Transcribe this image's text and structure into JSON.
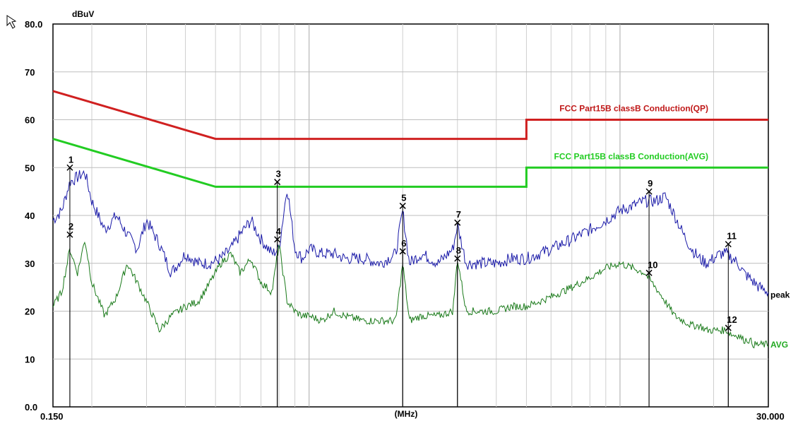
{
  "chart_data": {
    "type": "line",
    "title": "",
    "xlabel": "(MHz)",
    "ylabel": "dBuV",
    "x_scale": "log",
    "xlim": [
      0.15,
      30
    ],
    "ylim": [
      0,
      80
    ],
    "x_tick_labels": [
      "0.150",
      "30.000"
    ],
    "y_ticks": [
      0,
      10,
      20,
      30,
      40,
      50,
      60,
      70,
      80
    ],
    "y_tick_labels": [
      "0.0",
      "10",
      "20",
      "30",
      "40",
      "50",
      "60",
      "70",
      "80.0"
    ],
    "grid": true,
    "limit_lines": [
      {
        "name": "FCC  Part15B classB Conduction(QP)",
        "color": "#d02020",
        "points": [
          [
            0.15,
            66
          ],
          [
            0.5,
            56
          ],
          [
            5,
            56
          ],
          [
            5,
            60
          ],
          [
            30,
            60
          ]
        ]
      },
      {
        "name": "FCC  Part15B classB Conduction(AVG)",
        "color": "#22cc22",
        "points": [
          [
            0.15,
            56
          ],
          [
            0.5,
            46
          ],
          [
            5,
            46
          ],
          [
            5,
            50
          ],
          [
            30,
            50
          ]
        ]
      }
    ],
    "series": [
      {
        "name": "peak",
        "color": "#1a1aa8",
        "x": [
          0.15,
          0.16,
          0.17,
          0.18,
          0.19,
          0.2,
          0.22,
          0.24,
          0.26,
          0.28,
          0.3,
          0.33,
          0.36,
          0.4,
          0.44,
          0.48,
          0.52,
          0.56,
          0.6,
          0.65,
          0.7,
          0.76,
          0.8,
          0.85,
          0.9,
          0.95,
          1.0,
          1.1,
          1.2,
          1.3,
          1.5,
          1.7,
          1.9,
          2.0,
          2.1,
          2.3,
          2.6,
          2.9,
          3.0,
          3.2,
          3.5,
          4.0,
          4.5,
          5.0,
          5.5,
          6.0,
          7.0,
          8.0,
          9.0,
          10.0,
          11.0,
          12.0,
          13.0,
          14.0,
          15.0,
          16.0,
          17.0,
          18.0,
          19.0,
          20.0,
          21.0,
          22.0,
          23.0,
          24.0,
          25.0,
          26.0,
          27.0,
          28.0,
          30.0
        ],
        "values": [
          39,
          41,
          47,
          48,
          49,
          43,
          37,
          40,
          36,
          33,
          39,
          34,
          28,
          32,
          30,
          30,
          31,
          33,
          36,
          39,
          35,
          32,
          33,
          46,
          33,
          31,
          33,
          32,
          32,
          31,
          31,
          30,
          32,
          41,
          30,
          32,
          30,
          33,
          38,
          30,
          30,
          30,
          31,
          31,
          32,
          33,
          35,
          37,
          39,
          41,
          42,
          43,
          43,
          44,
          40,
          36,
          33,
          31,
          30,
          31,
          32,
          32,
          31,
          30,
          28,
          27,
          26,
          25,
          24
        ]
      },
      {
        "name": "AVG",
        "color": "#1a7a1a",
        "x": [
          0.15,
          0.16,
          0.17,
          0.18,
          0.19,
          0.2,
          0.22,
          0.24,
          0.26,
          0.28,
          0.3,
          0.33,
          0.36,
          0.4,
          0.44,
          0.48,
          0.52,
          0.56,
          0.6,
          0.65,
          0.7,
          0.76,
          0.8,
          0.85,
          0.9,
          0.95,
          1.0,
          1.1,
          1.2,
          1.3,
          1.5,
          1.7,
          1.9,
          2.0,
          2.1,
          2.3,
          2.6,
          2.9,
          3.0,
          3.2,
          3.5,
          4.0,
          4.5,
          5.0,
          5.5,
          6.0,
          7.0,
          8.0,
          9.0,
          10.0,
          11.0,
          12.0,
          13.0,
          14.0,
          15.0,
          16.0,
          17.0,
          18.0,
          19.0,
          20.0,
          21.0,
          22.0,
          23.0,
          24.0,
          25.0,
          26.0,
          27.0,
          28.0,
          30.0
        ],
        "values": [
          21,
          24,
          33,
          28,
          35,
          26,
          19,
          23,
          30,
          26,
          22,
          16,
          19,
          21,
          22,
          26,
          30,
          32,
          28,
          31,
          26,
          24,
          34,
          22,
          20,
          19,
          19,
          18,
          20,
          19,
          18,
          18,
          18,
          30,
          18,
          19,
          19,
          20,
          31,
          20,
          20,
          20,
          21,
          21,
          22,
          23,
          25,
          27,
          29,
          30,
          29,
          28,
          25,
          22,
          19,
          18,
          17,
          17,
          16,
          16,
          16,
          16,
          15,
          15,
          14,
          14,
          13,
          13,
          13
        ]
      }
    ],
    "markers": [
      {
        "label": "1",
        "x": 0.17,
        "y": 50
      },
      {
        "label": "2",
        "x": 0.17,
        "y": 36
      },
      {
        "label": "3",
        "x": 0.79,
        "y": 47
      },
      {
        "label": "4",
        "x": 0.79,
        "y": 35
      },
      {
        "label": "5",
        "x": 2.0,
        "y": 42
      },
      {
        "label": "6",
        "x": 2.0,
        "y": 32.5
      },
      {
        "label": "7",
        "x": 3.0,
        "y": 38.5
      },
      {
        "label": "8",
        "x": 3.0,
        "y": 31
      },
      {
        "label": "9",
        "x": 12.4,
        "y": 45
      },
      {
        "label": "10",
        "x": 12.4,
        "y": 28
      },
      {
        "label": "11",
        "x": 22.3,
        "y": 34
      },
      {
        "label": "12",
        "x": 22.3,
        "y": 16.5
      }
    ]
  }
}
